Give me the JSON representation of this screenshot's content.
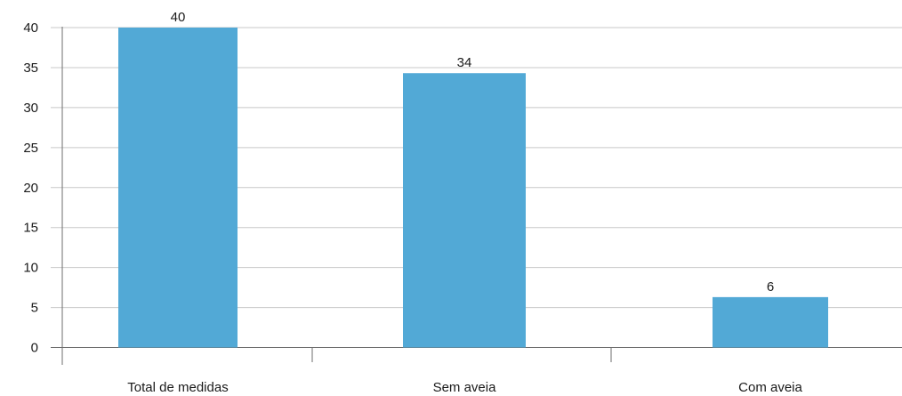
{
  "chart_data": {
    "type": "bar",
    "title": "",
    "xlabel": "",
    "ylabel": "",
    "categories": [
      "Total de medidas",
      "Sem aveia",
      "Com aveia"
    ],
    "values": [
      40,
      34.3,
      6.3
    ],
    "data_labels": [
      "40",
      "34",
      "6"
    ],
    "ylim": [
      0,
      40
    ],
    "yticks": [
      0,
      5,
      10,
      15,
      20,
      25,
      30,
      35,
      40
    ],
    "grid": true,
    "legend": "none",
    "colors": {
      "bar": "#52a9d6",
      "grid": "#c8c8c8",
      "axis": "#6e6e6e",
      "text": "#1a1a1a"
    }
  }
}
